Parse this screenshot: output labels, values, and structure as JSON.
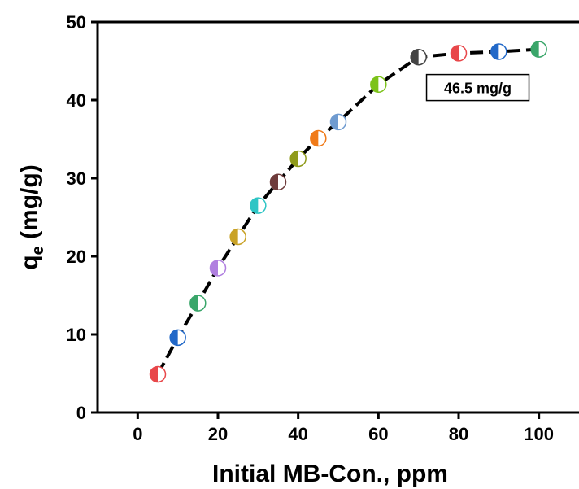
{
  "chart_data": {
    "type": "scatter",
    "xlabel": "Initial MB-Con., ppm",
    "ylabel_main": "q",
    "ylabel_sub": "e",
    "ylabel_rest": " (mg/g)",
    "xlim": [
      -10,
      110
    ],
    "ylim": [
      0,
      50
    ],
    "xticks": [
      0,
      20,
      40,
      60,
      80,
      100
    ],
    "yticks": [
      0,
      10,
      20,
      30,
      40,
      50
    ],
    "grid": false,
    "line_style": "dashed",
    "series": [
      {
        "x": [
          5,
          10,
          15,
          20,
          25,
          30,
          35,
          40,
          45,
          50,
          60,
          70,
          80,
          90,
          100
        ],
        "y": [
          4.9,
          9.6,
          14.0,
          18.5,
          22.5,
          26.5,
          29.5,
          32.5,
          35.1,
          37.2,
          42.0,
          45.5,
          46.0,
          46.2,
          46.5
        ]
      }
    ],
    "marker_colors": [
      "#e8474a",
      "#2168c8",
      "#3aa66a",
      "#b07fe0",
      "#c9a227",
      "#2ec5c5",
      "#6e3b3b",
      "#8f9a1a",
      "#f07a18",
      "#6f9bd0",
      "#7cc21a",
      "#444444",
      "#e8474a",
      "#2168c8",
      "#3aa66a"
    ],
    "annotation": {
      "text": "46.5 mg/g",
      "x": 72,
      "y": 41.5
    }
  }
}
